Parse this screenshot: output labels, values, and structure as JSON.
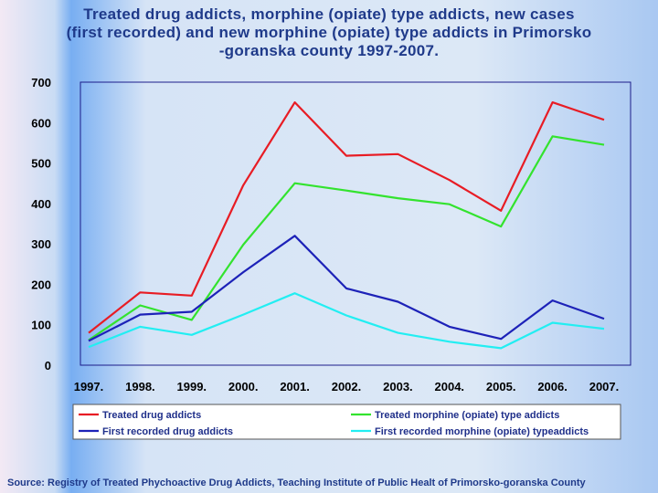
{
  "title_lines": [
    "Treated drug addicts, morphine (opiate) type addicts, new cases",
    "(first recorded) and new morphine (opiate) type addicts in Primorsko",
    "-goranska county 1997-2007."
  ],
  "source": "Source: Registry of Treated Phychoactive Drug Addicts, Teaching Institute of Public Healt of Primorsko-goranska County",
  "colors": {
    "treated": "#e81c24",
    "treated_morphine": "#33e32e",
    "first_recorded": "#1d22b8",
    "first_recorded_morphine": "#22eef2"
  },
  "chart_data": {
    "type": "line",
    "title": "Treated drug addicts, morphine (opiate) type addicts, new cases (first recorded) and new morphine (opiate) type addicts in Primorsko-goranska county 1997-2007.",
    "xlabel": "",
    "ylabel": "",
    "categories": [
      "1997.",
      "1998.",
      "1999.",
      "2000.",
      "2001.",
      "2002.",
      "2003.",
      "2004.",
      "2005.",
      "2006.",
      "2007."
    ],
    "ylim": [
      0,
      700
    ],
    "yticks": [
      0,
      100,
      200,
      300,
      400,
      500,
      600,
      700
    ],
    "grid": false,
    "legend_position": "bottom",
    "series": [
      {
        "key": "treated",
        "name": "Treated drug addicts",
        "values": [
          80,
          180,
          172,
          445,
          650,
          518,
          522,
          458,
          382,
          650,
          607
        ]
      },
      {
        "key": "treated_morphine",
        "name": "Treated morphine (opiate) type addicts",
        "values": [
          62,
          148,
          112,
          298,
          450,
          432,
          413,
          398,
          343,
          566,
          545
        ]
      },
      {
        "key": "first_recorded",
        "name": "First recorded drug addicts",
        "values": [
          60,
          125,
          132,
          230,
          320,
          190,
          157,
          95,
          65,
          160,
          115
        ]
      },
      {
        "key": "first_recorded_morphine",
        "name": "First recorded morphine (opiate) typeaddicts",
        "values": [
          45,
          95,
          75,
          125,
          178,
          123,
          80,
          58,
          42,
          105,
          90
        ]
      }
    ]
  }
}
